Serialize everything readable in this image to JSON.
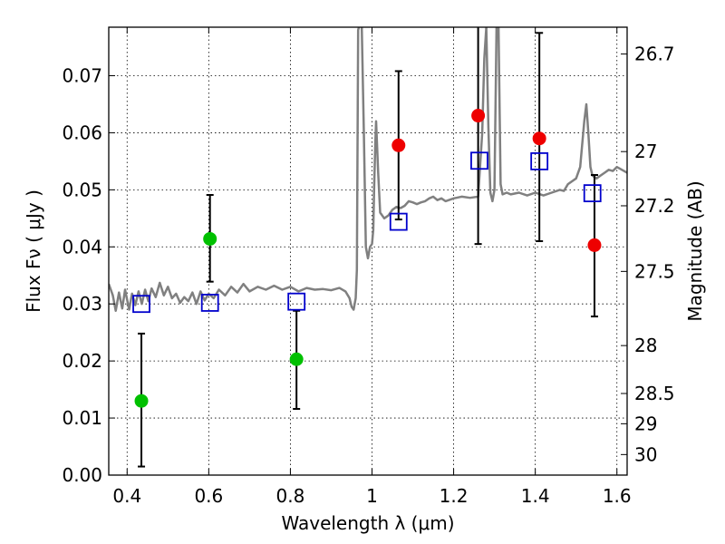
{
  "chart_data": {
    "type": "scatter",
    "title": "",
    "xlabel": "Wavelength  λ (μm)",
    "ylabel": "Flux  Fν  ( μJy )",
    "ylabel_right": "Magnitude (AB)",
    "xlim": [
      0.355,
      1.625
    ],
    "ylim": [
      0.0,
      0.0785
    ],
    "grid": true,
    "x_ticks": [
      0.4,
      0.6,
      0.8,
      1.0,
      1.2,
      1.4,
      1.6
    ],
    "x_tick_labels": [
      "0.4",
      "0.6",
      "0.8",
      "1",
      "1.2",
      "1.4",
      "1.6"
    ],
    "y_ticks": [
      0.0,
      0.01,
      0.02,
      0.03,
      0.04,
      0.05,
      0.06,
      0.07
    ],
    "y_tick_labels": [
      "0.00",
      "0.01",
      "0.02",
      "0.03",
      "0.04",
      "0.05",
      "0.06",
      "0.07"
    ],
    "right_ticks": [
      {
        "label": "26.7",
        "flux": 0.0738
      },
      {
        "label": "27",
        "flux": 0.0567
      },
      {
        "label": "27.2",
        "flux": 0.0472
      },
      {
        "label": "27.5",
        "flux": 0.0357
      },
      {
        "label": "28",
        "flux": 0.0227
      },
      {
        "label": "28.5",
        "flux": 0.0143
      },
      {
        "label": "29",
        "flux": 0.009
      },
      {
        "label": "30",
        "flux": 0.0036
      }
    ],
    "series": [
      {
        "name": "Observed (green)",
        "marker": "circle",
        "color": "#00c000",
        "x": [
          0.435,
          0.603,
          0.815
        ],
        "y": [
          0.013,
          0.0414,
          0.0203
        ],
        "err_low": [
          0.0115,
          0.0075,
          0.0087
        ],
        "err_high": [
          0.0118,
          0.0077,
          0.0085
        ]
      },
      {
        "name": "Observed (red)",
        "marker": "circle",
        "color": "#ee0000",
        "x": [
          1.065,
          1.26,
          1.41,
          1.545
        ],
        "y": [
          0.0578,
          0.063,
          0.059,
          0.0403
        ],
        "err_low": [
          0.013,
          0.0225,
          0.018,
          0.0125
        ],
        "err_high": [
          0.013,
          0.0163,
          0.0185,
          0.0123
        ]
      },
      {
        "name": "Model synthetic photometry",
        "marker": "square",
        "color": "#0000cc",
        "x": [
          0.435,
          0.603,
          0.815,
          1.065,
          1.263,
          1.41,
          1.54
        ],
        "y": [
          0.03,
          0.0302,
          0.0304,
          0.0444,
          0.0551,
          0.055,
          0.0494
        ]
      },
      {
        "name": "Model spectrum",
        "type": "line",
        "color": "#808080",
        "x": [
          0.355,
          0.365,
          0.372,
          0.38,
          0.388,
          0.395,
          0.405,
          0.412,
          0.42,
          0.428,
          0.436,
          0.444,
          0.452,
          0.46,
          0.47,
          0.48,
          0.49,
          0.5,
          0.51,
          0.52,
          0.53,
          0.54,
          0.55,
          0.56,
          0.57,
          0.58,
          0.59,
          0.6,
          0.612,
          0.625,
          0.64,
          0.655,
          0.67,
          0.685,
          0.7,
          0.72,
          0.74,
          0.76,
          0.78,
          0.8,
          0.82,
          0.84,
          0.86,
          0.88,
          0.9,
          0.92,
          0.935,
          0.945,
          0.95,
          0.955,
          0.96,
          0.963,
          0.966,
          0.97,
          0.975,
          0.98,
          0.985,
          0.99,
          0.995,
          1.0,
          1.003,
          1.005,
          1.008,
          1.01,
          1.015,
          1.02,
          1.03,
          1.04,
          1.05,
          1.06,
          1.07,
          1.08,
          1.09,
          1.1,
          1.11,
          1.12,
          1.13,
          1.14,
          1.15,
          1.16,
          1.17,
          1.18,
          1.2,
          1.22,
          1.24,
          1.26,
          1.27,
          1.275,
          1.28,
          1.285,
          1.29,
          1.295,
          1.3,
          1.305,
          1.31,
          1.315,
          1.32,
          1.33,
          1.34,
          1.36,
          1.38,
          1.4,
          1.42,
          1.44,
          1.46,
          1.47,
          1.48,
          1.5,
          1.51,
          1.52,
          1.525,
          1.53,
          1.535,
          1.54,
          1.55,
          1.56,
          1.57,
          1.58,
          1.59,
          1.6,
          1.61,
          1.625
        ],
        "y": [
          0.0335,
          0.0315,
          0.0288,
          0.032,
          0.0292,
          0.0325,
          0.029,
          0.0318,
          0.0298,
          0.0322,
          0.03,
          0.0325,
          0.0305,
          0.0327,
          0.0312,
          0.0337,
          0.0315,
          0.033,
          0.031,
          0.0318,
          0.0302,
          0.0312,
          0.0305,
          0.032,
          0.03,
          0.0322,
          0.0306,
          0.0318,
          0.031,
          0.0325,
          0.0315,
          0.033,
          0.032,
          0.0335,
          0.0322,
          0.033,
          0.0325,
          0.0332,
          0.0325,
          0.033,
          0.0322,
          0.0328,
          0.0325,
          0.0326,
          0.0324,
          0.0328,
          0.0322,
          0.031,
          0.0295,
          0.029,
          0.031,
          0.036,
          0.078,
          0.079,
          0.0785,
          0.06,
          0.04,
          0.038,
          0.04,
          0.0405,
          0.043,
          0.05,
          0.058,
          0.062,
          0.053,
          0.046,
          0.045,
          0.0455,
          0.0465,
          0.047,
          0.0468,
          0.0472,
          0.048,
          0.0478,
          0.0475,
          0.0478,
          0.048,
          0.0485,
          0.0488,
          0.0482,
          0.0485,
          0.048,
          0.0485,
          0.0488,
          0.0486,
          0.0488,
          0.06,
          0.073,
          0.0785,
          0.061,
          0.0495,
          0.048,
          0.05,
          0.0785,
          0.0785,
          0.051,
          0.0492,
          0.0495,
          0.0492,
          0.0495,
          0.049,
          0.0495,
          0.049,
          0.0495,
          0.05,
          0.0498,
          0.051,
          0.052,
          0.054,
          0.062,
          0.065,
          0.06,
          0.054,
          0.0525,
          0.052,
          0.0525,
          0.053,
          0.0535,
          0.0533,
          0.054,
          0.0536,
          0.053
        ]
      }
    ]
  }
}
